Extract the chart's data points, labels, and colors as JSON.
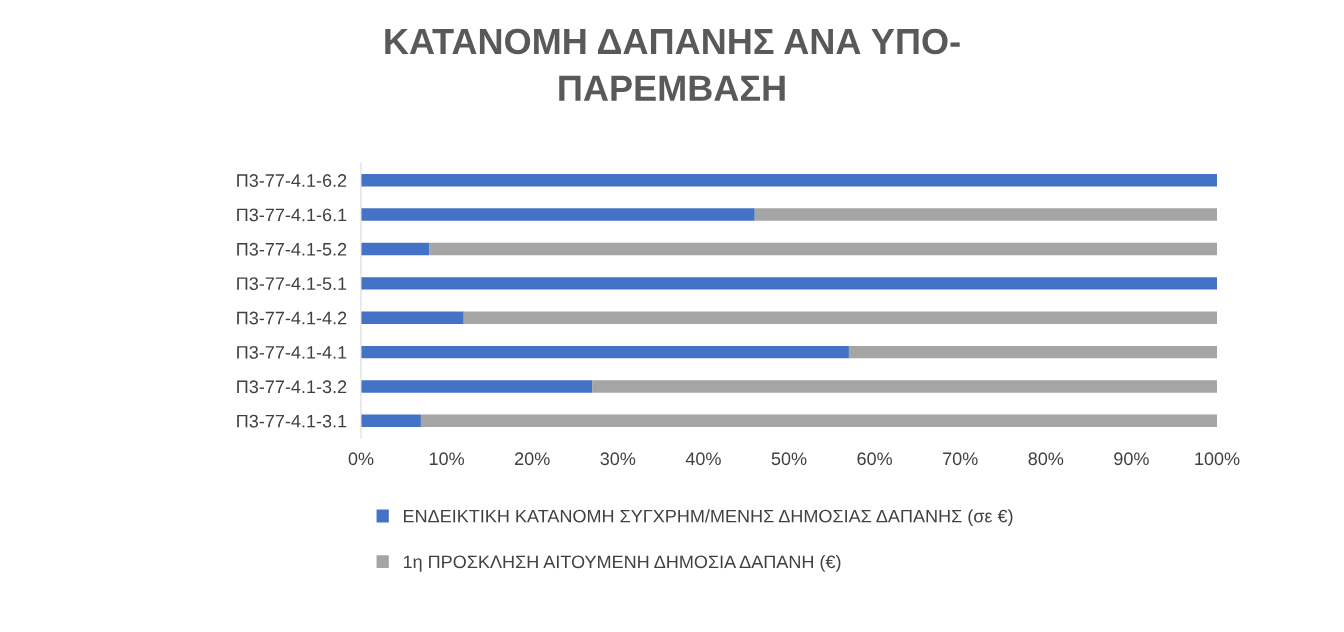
{
  "chart_data": {
    "type": "bar",
    "orientation": "horizontal",
    "stacked": true,
    "title": "ΚΑΤΑΝΟΜΗ ΔΑΠΑΝΗΣ ΑΝΑ ΥΠΟ-\nΠΑΡΕΜΒΑΣΗ",
    "categories": [
      "Π3-77-4.1-6.2",
      "Π3-77-4.1-6.1",
      "Π3-77-4.1-5.2",
      "Π3-77-4.1-5.1",
      "Π3-77-4.1-4.2",
      "Π3-77-4.1-4.1",
      "Π3-77-4.1-3.2",
      "Π3-77-4.1-3.1"
    ],
    "series": [
      {
        "name": "ΕΝΔΕΙΚΤΙΚΗ ΚΑΤΑΝΟΜΗ ΣΥΓΧΡΗΜ/ΜΕΝΗΣ ΔΗΜΟΣΙΑΣ ΔΑΠΑΝΗΣ (σε €)",
        "color": "#4472c4",
        "values": [
          100,
          46,
          8,
          100,
          12,
          57,
          27,
          7
        ]
      },
      {
        "name": "1η ΠΡΟΣΚΛΗΣΗ ΑΙΤΟΥΜΕΝΗ ΔΗΜΟΣΙΑ ΔΑΠΑΝΗ (€)",
        "color": "#a5a5a5",
        "values": [
          0,
          54,
          92,
          0,
          88,
          43,
          73,
          93
        ]
      }
    ],
    "xlim": [
      0,
      100
    ],
    "xticks": [
      {
        "value": 0,
        "label": "0%"
      },
      {
        "value": 10,
        "label": "10%"
      },
      {
        "value": 20,
        "label": "20%"
      },
      {
        "value": 30,
        "label": "30%"
      },
      {
        "value": 40,
        "label": "40%"
      },
      {
        "value": 50,
        "label": "50%"
      },
      {
        "value": 60,
        "label": "60%"
      },
      {
        "value": 70,
        "label": "70%"
      },
      {
        "value": 80,
        "label": "80%"
      },
      {
        "value": 90,
        "label": "90%"
      },
      {
        "value": 100,
        "label": "100%"
      }
    ],
    "grid": false,
    "legend": "bottom"
  }
}
